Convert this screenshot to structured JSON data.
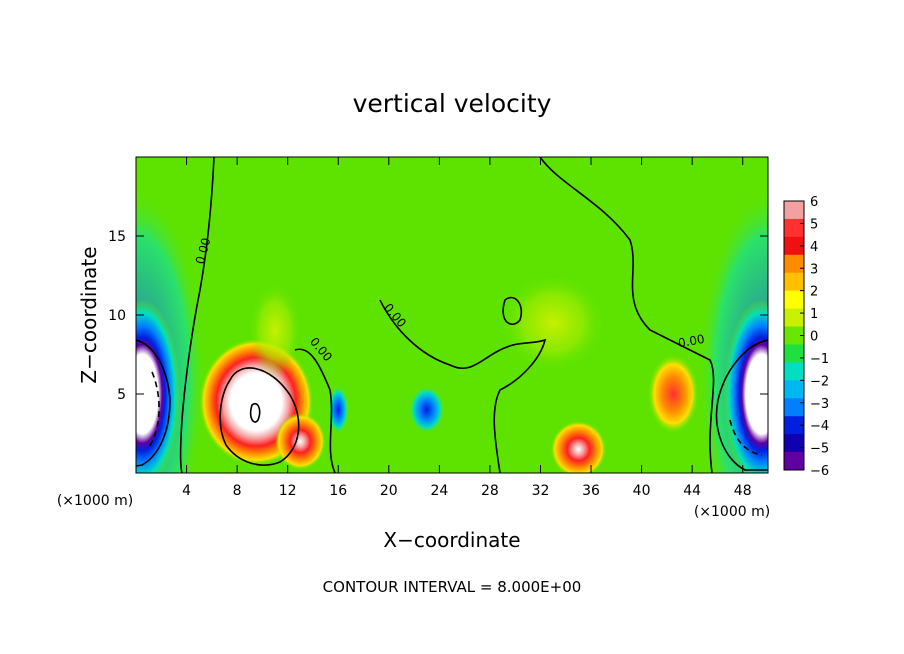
{
  "chart_data": {
    "type": "heatmap",
    "title": "vertical velocity",
    "xlabel": "X−coordinate",
    "ylabel": "Z−coordinate",
    "x_unit": "(×1000 m)",
    "y_unit": "(×1000 m)",
    "xlim": [
      0,
      50
    ],
    "ylim": [
      0,
      20
    ],
    "x_ticks": [
      4,
      8,
      12,
      16,
      20,
      24,
      28,
      32,
      36,
      40,
      44,
      48
    ],
    "x_tick_labels": [
      "4",
      "8",
      "12",
      "16",
      "20",
      "24",
      "28",
      "32",
      "36",
      "40",
      "44",
      "48"
    ],
    "y_ticks": [
      5,
      10,
      15
    ],
    "y_tick_labels": [
      "5",
      "10",
      "15"
    ],
    "colorbar": {
      "min": -6,
      "max": 6,
      "ticks": [
        6,
        5,
        4,
        3,
        2,
        1,
        0,
        -1,
        -2,
        -3,
        -4,
        -5,
        -6
      ],
      "tick_labels": [
        "6",
        "5",
        "4",
        "3",
        "2",
        "1",
        "0",
        "−1",
        "−2",
        "−3",
        "−4",
        "−5",
        "−6"
      ],
      "colors": [
        "#f5a0a0",
        "#ff3030",
        "#f01010",
        "#ff8c00",
        "#ffc000",
        "#ffff00",
        "#c8f000",
        "#66e600",
        "#20e040",
        "#00e0c0",
        "#00b8f0",
        "#0080ff",
        "#0020e0",
        "#1000b0",
        "#6000a0"
      ]
    },
    "contour_labels": [
      "0.00",
      "0.00",
      "0.00",
      "0.00"
    ],
    "contour_interval_text": "CONTOUR INTERVAL = 8.000E+00",
    "features": [
      {
        "x": 9.5,
        "z": 4.5,
        "value": 14,
        "rx": 4.5,
        "rz": 4.0
      },
      {
        "x": 13.0,
        "z": 2.0,
        "value": 5,
        "rx": 2.0,
        "rz": 1.8
      },
      {
        "x": 35.0,
        "z": 1.5,
        "value": 7,
        "rx": 2.2,
        "rz": 1.8
      },
      {
        "x": 42.5,
        "z": 5.0,
        "value": 4,
        "rx": 2.0,
        "rz": 2.5
      },
      {
        "x": 16.0,
        "z": 4.0,
        "value": -3,
        "rx": 0.8,
        "rz": 1.5
      },
      {
        "x": 23.0,
        "z": 4.0,
        "value": -3.5,
        "rx": 1.4,
        "rz": 1.5
      },
      {
        "x": 0.5,
        "z": 5.0,
        "value": -14,
        "rx": 3.0,
        "rz": 6.0
      },
      {
        "x": 49.5,
        "z": 5.0,
        "value": -14,
        "rx": 3.0,
        "rz": 6.0
      },
      {
        "x": 11.0,
        "z": 9.0,
        "value": 1.5,
        "rx": 2.0,
        "rz": 3.0
      },
      {
        "x": 33.0,
        "z": 9.5,
        "value": 1.2,
        "rx": 4.0,
        "rz": 3.0
      }
    ]
  }
}
